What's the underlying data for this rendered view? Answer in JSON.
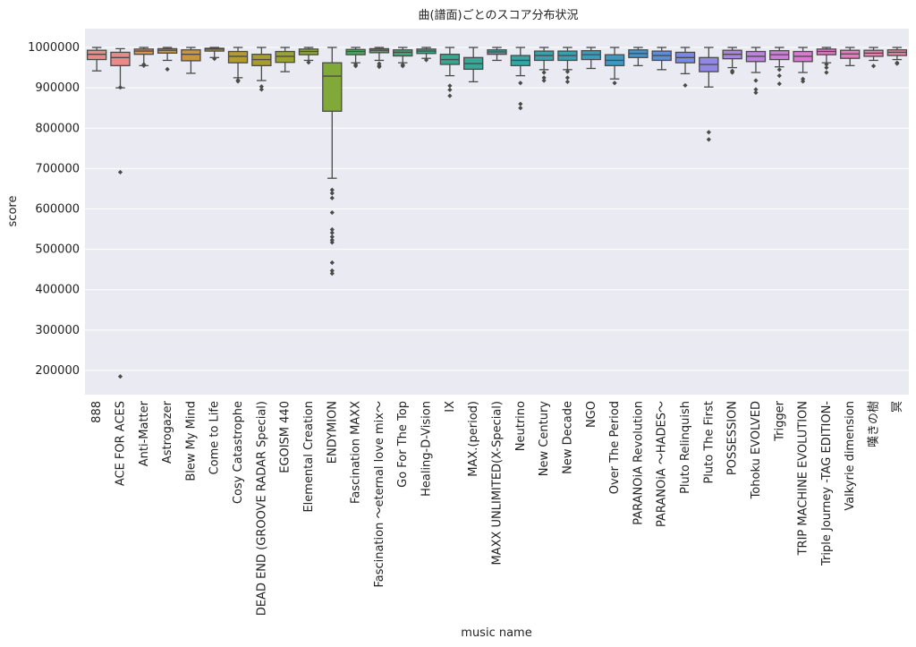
{
  "chart_data": {
    "type": "boxplot",
    "title": "曲(譜面)ごとのスコア分布状況",
    "xlabel": "music name",
    "ylabel": "score",
    "ylim": [
      140000,
      1020000
    ],
    "yticks": [
      200000,
      300000,
      400000,
      500000,
      600000,
      700000,
      800000,
      900000,
      1000000
    ],
    "grid": true,
    "boxes": [
      {
        "name": "888",
        "color": "#e88a8a",
        "whisker_low": 942000,
        "q1": 970000,
        "median": 983000,
        "q3": 993000,
        "whisker_high": 1000000,
        "outliers": []
      },
      {
        "name": "ACE FOR ACES",
        "color": "#e88a8a",
        "whisker_low": 900000,
        "q1": 955000,
        "median": 975000,
        "q3": 988000,
        "whisker_high": 997000,
        "outliers": [
          901000,
          691000,
          185000
        ]
      },
      {
        "name": "Anti-Matter",
        "color": "#d6924f",
        "whisker_low": 955000,
        "q1": 983000,
        "median": 991000,
        "q3": 996000,
        "whisker_high": 1000000,
        "outliers": [
          958000,
          955000
        ]
      },
      {
        "name": "Astrogazer",
        "color": "#c9963f",
        "whisker_low": 968000,
        "q1": 986000,
        "median": 993000,
        "q3": 997000,
        "whisker_high": 1000000,
        "outliers": [
          946000
        ]
      },
      {
        "name": "Blew My Mind",
        "color": "#c9963f",
        "whisker_low": 936000,
        "q1": 967000,
        "median": 983000,
        "q3": 994000,
        "whisker_high": 1000000,
        "outliers": []
      },
      {
        "name": "Come to Life",
        "color": "#b89a30",
        "whisker_low": 975000,
        "q1": 991000,
        "median": 996000,
        "q3": 998000,
        "whisker_high": 1000000,
        "outliers": [
          972000
        ]
      },
      {
        "name": "Cosy Catastrophe",
        "color": "#b39b30",
        "whisker_low": 925000,
        "q1": 962000,
        "median": 978000,
        "q3": 990000,
        "whisker_high": 1000000,
        "outliers": [
          919000,
          916000
        ]
      },
      {
        "name": "DEAD END (GROOVE RADAR Special)",
        "color": "#a89e30",
        "whisker_low": 918000,
        "q1": 955000,
        "median": 970000,
        "q3": 983000,
        "whisker_high": 1000000,
        "outliers": [
          903000,
          896000
        ]
      },
      {
        "name": "EGOISM 440",
        "color": "#9aa233",
        "whisker_low": 940000,
        "q1": 963000,
        "median": 978000,
        "q3": 990000,
        "whisker_high": 1000000,
        "outliers": []
      },
      {
        "name": "Elemental Creation",
        "color": "#8da536",
        "whisker_low": 968000,
        "q1": 982000,
        "median": 990000,
        "q3": 996000,
        "whisker_high": 1000000,
        "outliers": [
          963000
        ]
      },
      {
        "name": "ENDYMION",
        "color": "#80a93a",
        "whisker_low": 676000,
        "q1": 842000,
        "median": 929000,
        "q3": 962000,
        "whisker_high": 1000000,
        "outliers": [
          647000,
          639000,
          627000,
          591000,
          549000,
          541000,
          531000,
          523000,
          517000,
          467000,
          447000,
          440000
        ]
      },
      {
        "name": "Fascination MAXX",
        "color": "#4aa85a",
        "whisker_low": 962000,
        "q1": 982000,
        "median": 990000,
        "q3": 995000,
        "whisker_high": 1000000,
        "outliers": [
          958000,
          954000
        ]
      },
      {
        "name": "Fascination ～eternal love mix～",
        "color": "#43a86a",
        "whisker_low": 968000,
        "q1": 987000,
        "median": 993000,
        "q3": 997000,
        "whisker_high": 1000000,
        "outliers": [
          960000,
          955000,
          952000
        ]
      },
      {
        "name": "Go For The Top",
        "color": "#3ea878",
        "whisker_low": 962000,
        "q1": 979000,
        "median": 988000,
        "q3": 994000,
        "whisker_high": 1000000,
        "outliers": [
          957000,
          954000
        ]
      },
      {
        "name": "Healing-D-Vision",
        "color": "#3aa884",
        "whisker_low": 973000,
        "q1": 985000,
        "median": 991000,
        "q3": 996000,
        "whisker_high": 1000000,
        "outliers": [
          969000
        ]
      },
      {
        "name": "IX",
        "color": "#37a88f",
        "whisker_low": 930000,
        "q1": 958000,
        "median": 970000,
        "q3": 983000,
        "whisker_high": 1000000,
        "outliers": [
          905000,
          895000,
          880000
        ]
      },
      {
        "name": "MAX.(period)",
        "color": "#35a896",
        "whisker_low": 915000,
        "q1": 946000,
        "median": 960000,
        "q3": 975000,
        "whisker_high": 1000000,
        "outliers": []
      },
      {
        "name": "MAXX UNLIMITED(X-Special)",
        "color": "#34a89c",
        "whisker_low": 968000,
        "q1": 983000,
        "median": 989000,
        "q3": 994000,
        "whisker_high": 1000000,
        "outliers": []
      },
      {
        "name": "Neutrino",
        "color": "#34a6a4",
        "whisker_low": 930000,
        "q1": 955000,
        "median": 968000,
        "q3": 980000,
        "whisker_high": 1000000,
        "outliers": [
          912000,
          860000,
          850000
        ]
      },
      {
        "name": "New Century",
        "color": "#36a2ac",
        "whisker_low": 945000,
        "q1": 968000,
        "median": 980000,
        "q3": 991000,
        "whisker_high": 1000000,
        "outliers": [
          938000,
          925000,
          918000
        ]
      },
      {
        "name": "New Decade",
        "color": "#389fb3",
        "whisker_low": 945000,
        "q1": 968000,
        "median": 980000,
        "q3": 991000,
        "whisker_high": 1000000,
        "outliers": [
          940000,
          925000,
          915000
        ]
      },
      {
        "name": "NGO",
        "color": "#3b9cba",
        "whisker_low": 948000,
        "q1": 970000,
        "median": 982000,
        "q3": 992000,
        "whisker_high": 1000000,
        "outliers": []
      },
      {
        "name": "Over The Period",
        "color": "#3f98c2",
        "whisker_low": 922000,
        "q1": 955000,
        "median": 968000,
        "q3": 982000,
        "whisker_high": 1000000,
        "outliers": [
          912000
        ]
      },
      {
        "name": "PARANOiA Revolution",
        "color": "#4794cc",
        "whisker_low": 955000,
        "q1": 975000,
        "median": 985000,
        "q3": 994000,
        "whisker_high": 1000000,
        "outliers": []
      },
      {
        "name": "PARANOiA ～HADES～",
        "color": "#5a8fd6",
        "whisker_low": 945000,
        "q1": 968000,
        "median": 980000,
        "q3": 991000,
        "whisker_high": 1000000,
        "outliers": []
      },
      {
        "name": "Pluto Relinquish",
        "color": "#7a8ae0",
        "whisker_low": 935000,
        "q1": 962000,
        "median": 975000,
        "q3": 988000,
        "whisker_high": 1000000,
        "outliers": [
          906000
        ]
      },
      {
        "name": "Pluto The First",
        "color": "#9287e2",
        "whisker_low": 902000,
        "q1": 940000,
        "median": 958000,
        "q3": 975000,
        "whisker_high": 1000000,
        "outliers": [
          790000,
          772000
        ]
      },
      {
        "name": "POSSESSION",
        "color": "#a886e0",
        "whisker_low": 950000,
        "q1": 972000,
        "median": 983000,
        "q3": 993000,
        "whisker_high": 1000000,
        "outliers": [
          942000,
          938000
        ]
      },
      {
        "name": "Tohoku EVOLVED",
        "color": "#bd83dc",
        "whisker_low": 938000,
        "q1": 965000,
        "median": 978000,
        "q3": 990000,
        "whisker_high": 1000000,
        "outliers": [
          918000,
          896000,
          888000
        ]
      },
      {
        "name": "Trigger",
        "color": "#cd7fd8",
        "whisker_low": 952000,
        "q1": 970000,
        "median": 982000,
        "q3": 992000,
        "whisker_high": 1000000,
        "outliers": [
          945000,
          930000,
          910000
        ]
      },
      {
        "name": "TRIP MACHINE EVOLUTION",
        "color": "#d97ad2",
        "whisker_low": 938000,
        "q1": 965000,
        "median": 978000,
        "q3": 990000,
        "whisker_high": 1000000,
        "outliers": [
          922000,
          916000
        ]
      },
      {
        "name": "Triple Journey -TAG EDITION-",
        "color": "#e078c8",
        "whisker_low": 962000,
        "q1": 982000,
        "median": 990000,
        "q3": 996000,
        "whisker_high": 1000000,
        "outliers": [
          958000,
          950000,
          938000
        ]
      },
      {
        "name": "Valkyrie dimension",
        "color": "#e57abd",
        "whisker_low": 955000,
        "q1": 973000,
        "median": 984000,
        "q3": 993000,
        "whisker_high": 1000000,
        "outliers": []
      },
      {
        "name": "嘆きの樹",
        "color": "#e77fb0",
        "whisker_low": 968000,
        "q1": 978000,
        "median": 986000,
        "q3": 993000,
        "whisker_high": 1000000,
        "outliers": [
          954000
        ]
      },
      {
        "name": "冥",
        "color": "#e884a3",
        "whisker_low": 970000,
        "q1": 980000,
        "median": 988000,
        "q3": 994000,
        "whisker_high": 1000000,
        "outliers": [
          962000,
          960000
        ]
      }
    ]
  }
}
